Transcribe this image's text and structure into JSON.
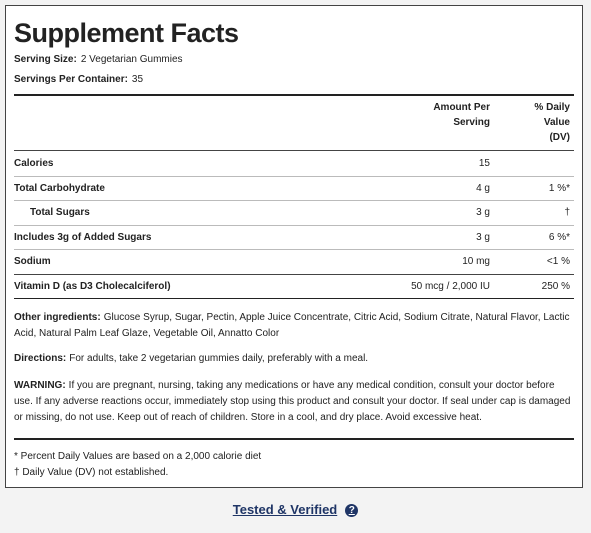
{
  "title": "Supplement Facts",
  "serving_size": {
    "label": "Serving Size:",
    "value": "2 Vegetarian Gummies"
  },
  "servings_per_container": {
    "label": "Servings Per Container:",
    "value": "35"
  },
  "table": {
    "headers": [
      "Amount Per Serving",
      "% Daily Value (DV)"
    ],
    "rows": [
      {
        "name": "Calories",
        "amount": "15"
      },
      {
        "name": "Total Carbohydrate",
        "amount": "4 g",
        "dv": "1 %*"
      },
      {
        "name": "Total Sugars",
        "amount": "3 g",
        "dv": "†"
      },
      {
        "name": "Includes 3g of Added Sugars",
        "amount": "3 g",
        "dv": "6 %*"
      },
      {
        "name": "Sodium",
        "amount": "10 mg",
        "dv": "<1 %"
      },
      {
        "name": "Vitamin D (as D3 Cholecalciferol)",
        "amount": "50 mcg / 2,000 IU",
        "dv": "250 %"
      }
    ]
  },
  "other_ingredients": {
    "label": "Other ingredients:",
    "text": "Glucose Syrup, Sugar, Pectin, Apple Juice Concentrate, Citric Acid, Sodium Citrate, Natural Flavor, Lactic Acid, Natural Palm Leaf Glaze, Vegetable Oil, Annatto Color"
  },
  "directions": {
    "label": "Directions:",
    "text": "For adults, take 2 vegetarian gummies daily, preferably with a meal."
  },
  "warning": {
    "label": "WARNING:",
    "text": "If you are pregnant, nursing, taking any medications or have any medical condition, consult your doctor before use. If any adverse reactions occur, immediately stop using this product and consult your doctor. If seal under cap is damaged or missing, do not use. Keep out of reach of children. Store in a cool, and dry place. Avoid excessive heat."
  },
  "footnotes": [
    "* Percent Daily Values are based on a 2,000 calorie diet",
    "† Daily Value (DV) not established."
  ],
  "link": "Tested & Verified"
}
